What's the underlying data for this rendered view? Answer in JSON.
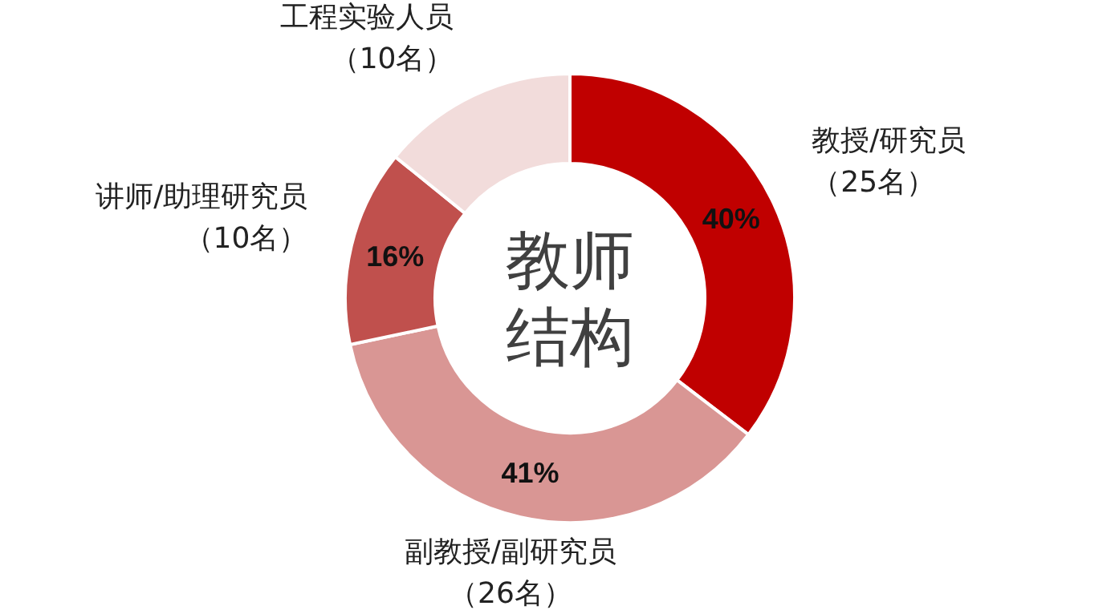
{
  "chart_data": {
    "type": "donut",
    "title": "教师结构",
    "categories": [
      "教授/研究员（25名）",
      "副教授/副研究员（26名）",
      "讲师/助理研究员（10名）",
      "工程实验人员（10名）"
    ],
    "values": [
      40,
      41,
      16,
      16
    ],
    "colors": [
      "#c00000",
      "#d99694",
      "#c0504d",
      "#f2dcdb"
    ],
    "value_labels": [
      "40%",
      "41%",
      "16%",
      null
    ]
  }
}
